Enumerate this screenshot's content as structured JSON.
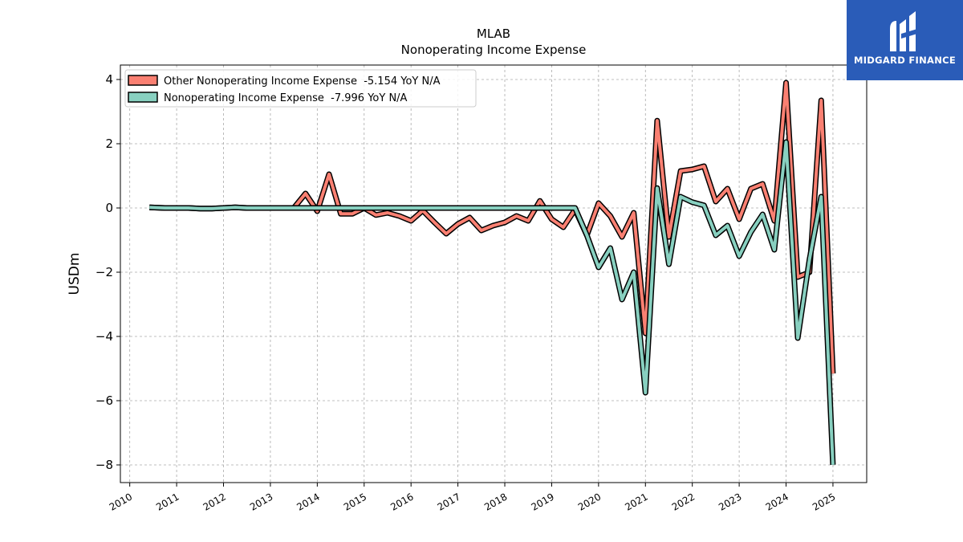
{
  "chart_data": {
    "type": "line",
    "title": "MLAB",
    "subtitle": "Nonoperating Income Expense",
    "ylabel": "USDm",
    "xlabel": "",
    "xlim": [
      2009.8,
      2025.72
    ],
    "ylim": [
      -8.55,
      4.45
    ],
    "yticks": [
      4,
      2,
      0,
      -2,
      -4,
      -6,
      -8
    ],
    "ytick_labels": [
      "4",
      "2",
      "0",
      "−2",
      "−4",
      "−6",
      "−8"
    ],
    "xticks": [
      2010,
      2011,
      2012,
      2013,
      2014,
      2015,
      2016,
      2017,
      2018,
      2019,
      2020,
      2021,
      2022,
      2023,
      2024,
      2025
    ],
    "xtick_labels": [
      "2010",
      "2011",
      "2012",
      "2013",
      "2014",
      "2015",
      "2016",
      "2017",
      "2018",
      "2019",
      "2020",
      "2021",
      "2022",
      "2023",
      "2024",
      "2025"
    ],
    "grid": true,
    "legend_position": "top-left",
    "series": [
      {
        "name": "Other Nonoperating Income Expense  -5.154 YoY N/A",
        "color": "#fa8072",
        "x": [
          2010.42,
          2010.75,
          2011.0,
          2011.25,
          2011.5,
          2011.75,
          2012.0,
          2012.25,
          2012.5,
          2012.75,
          2013.0,
          2013.25,
          2013.5,
          2013.75,
          2014.0,
          2014.25,
          2014.5,
          2014.75,
          2015.0,
          2015.25,
          2015.5,
          2015.75,
          2016.0,
          2016.25,
          2016.5,
          2016.75,
          2017.0,
          2017.25,
          2017.5,
          2017.75,
          2018.0,
          2018.25,
          2018.5,
          2018.75,
          2019.0,
          2019.25,
          2019.5,
          2019.75,
          2020.0,
          2020.25,
          2020.5,
          2020.75,
          2021.0,
          2021.25,
          2021.5,
          2021.75,
          2022.0,
          2022.25,
          2022.5,
          2022.75,
          2023.0,
          2023.25,
          2023.5,
          2023.75,
          2024.0,
          2024.25,
          2024.5,
          2024.75,
          2025.0
        ],
        "y": [
          0.02,
          0.0,
          0.0,
          0.0,
          -0.02,
          -0.02,
          0.0,
          0.02,
          0.0,
          0.0,
          0.0,
          0.0,
          0.0,
          0.45,
          -0.1,
          1.05,
          -0.18,
          -0.18,
          0.0,
          -0.22,
          -0.15,
          -0.25,
          -0.4,
          -0.08,
          -0.45,
          -0.8,
          -0.5,
          -0.3,
          -0.7,
          -0.55,
          -0.45,
          -0.25,
          -0.4,
          0.22,
          -0.35,
          -0.6,
          -0.05,
          -0.85,
          0.15,
          -0.25,
          -0.9,
          -0.15,
          -3.9,
          2.72,
          -0.9,
          1.15,
          1.2,
          1.3,
          0.2,
          0.6,
          -0.35,
          0.6,
          0.75,
          -0.4,
          3.9,
          -2.15,
          -2.0,
          3.35,
          -5.154
        ]
      },
      {
        "name": "Nonoperating Income Expense  -7.996 YoY N/A",
        "color": "#88d0c0",
        "x": [
          2010.42,
          2010.75,
          2011.0,
          2011.25,
          2011.5,
          2011.75,
          2012.0,
          2012.25,
          2012.5,
          2012.75,
          2013.0,
          2013.25,
          2013.5,
          2013.75,
          2014.0,
          2014.25,
          2014.5,
          2014.75,
          2015.0,
          2015.25,
          2015.5,
          2015.75,
          2016.0,
          2016.25,
          2016.5,
          2016.75,
          2017.0,
          2017.25,
          2017.5,
          2017.75,
          2018.0,
          2018.25,
          2018.5,
          2018.75,
          2019.0,
          2019.25,
          2019.5,
          2019.75,
          2020.0,
          2020.25,
          2020.5,
          2020.75,
          2021.0,
          2021.25,
          2021.5,
          2021.75,
          2022.0,
          2022.25,
          2022.5,
          2022.75,
          2023.0,
          2023.25,
          2023.5,
          2023.75,
          2024.0,
          2024.25,
          2024.5,
          2024.75,
          2025.0
        ],
        "y": [
          0.02,
          0.0,
          0.0,
          0.0,
          -0.02,
          -0.02,
          0.0,
          0.02,
          0.0,
          0.0,
          0.0,
          0.0,
          0.0,
          0.0,
          0.0,
          0.0,
          0.0,
          0.0,
          0.0,
          0.0,
          0.0,
          0.0,
          0.0,
          0.0,
          0.0,
          0.0,
          0.0,
          0.0,
          0.0,
          0.0,
          0.0,
          0.0,
          0.0,
          0.0,
          0.0,
          0.0,
          0.0,
          -0.85,
          -1.85,
          -1.25,
          -2.85,
          -2.0,
          -5.75,
          0.62,
          -1.75,
          0.35,
          0.18,
          0.08,
          -0.85,
          -0.55,
          -1.5,
          -0.75,
          -0.2,
          -1.3,
          2.05,
          -4.05,
          -1.6,
          0.35,
          -7.996
        ]
      }
    ]
  },
  "logo": {
    "text": "MIDGARD FINANCE"
  }
}
